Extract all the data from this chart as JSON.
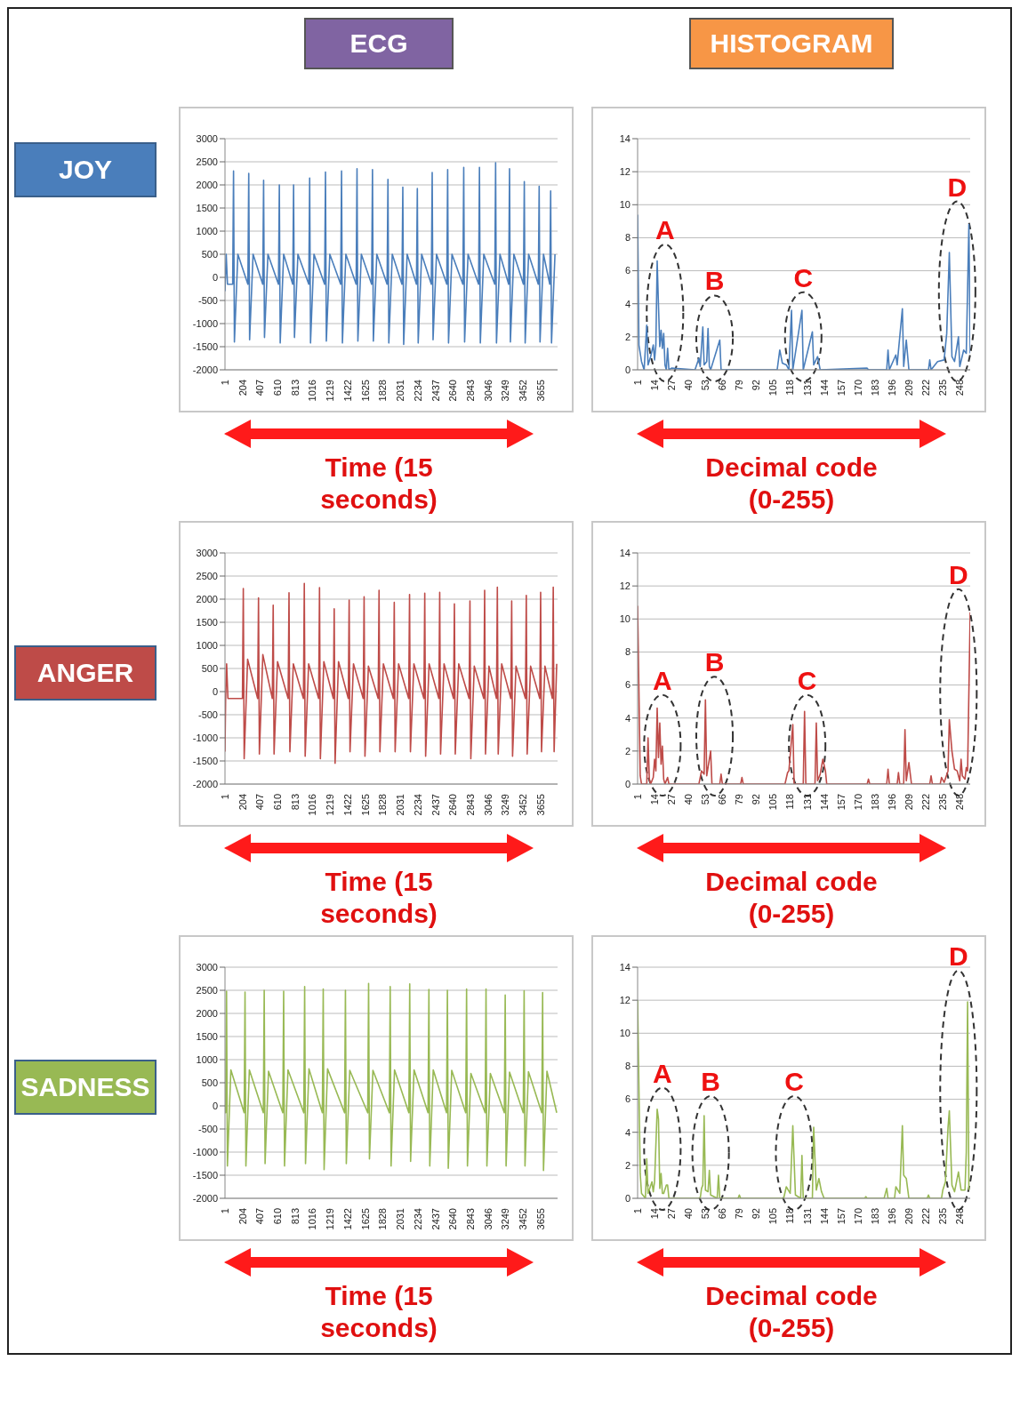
{
  "chart_data": [
    {
      "type": "line",
      "title": "ECG",
      "xlabel": "Time (15 seconds)",
      "annotations": [
        "JOY"
      ],
      "grid": "y",
      "xlim": [
        1,
        3850
      ],
      "xticks": [
        1,
        204,
        407,
        610,
        813,
        1016,
        1219,
        1422,
        1625,
        1828,
        2031,
        2234,
        2437,
        2640,
        2843,
        3046,
        3249,
        3452,
        3655
      ],
      "ylim": [
        -2000,
        3000
      ],
      "yticks": [
        -2000,
        -1500,
        -1000,
        -500,
        0,
        500,
        1000,
        1500,
        2000,
        2500,
        3000
      ],
      "series": [
        {
          "color": "#4a7ebb",
          "x": [
            1,
            15,
            30,
            90,
            100,
            110,
            150,
            266,
            276,
            286,
            326,
            438,
            448,
            458,
            498,
            620,
            630,
            640,
            680,
            785,
            795,
            805,
            845,
            971,
            981,
            991,
            1031,
            1154,
            1164,
            1174,
            1214,
            1340,
            1350,
            1360,
            1400,
            1519,
            1529,
            1539,
            1579,
            1698,
            1708,
            1718,
            1758,
            1877,
            1887,
            1897,
            1937,
            2049,
            2059,
            2069,
            2109,
            2217,
            2227,
            2237,
            2277,
            2389,
            2399,
            2409,
            2449,
            2568,
            2578,
            2588,
            2628,
            2754,
            2764,
            2774,
            2814,
            2936,
            2946,
            2956,
            2996,
            3123,
            3133,
            3143,
            3183,
            3284,
            3294,
            3304,
            3344,
            3455,
            3465,
            3475,
            3515,
            3627,
            3637,
            3647,
            3687,
            3760,
            3770,
            3780,
            3820
          ],
          "values": [
            -300,
            500,
            -150,
            -150,
            2300,
            -1400,
            500,
            -150,
            2250,
            -1350,
            500,
            -150,
            2100,
            -1300,
            500,
            -150,
            2000,
            -1420,
            500,
            -150,
            2000,
            -1300,
            500,
            -150,
            2150,
            -1420,
            500,
            -150,
            2280,
            -1380,
            500,
            -150,
            2300,
            -1420,
            500,
            -150,
            2350,
            -1380,
            500,
            -150,
            2330,
            -1380,
            500,
            -150,
            2120,
            -1420,
            500,
            -150,
            1950,
            -1450,
            500,
            -150,
            1920,
            -1420,
            500,
            -150,
            2270,
            -1350,
            500,
            -150,
            2330,
            -1420,
            500,
            -150,
            2380,
            -1400,
            500,
            -150,
            2380,
            -1420,
            500,
            -150,
            2480,
            -1420,
            500,
            -150,
            2350,
            -1400,
            500,
            -150,
            2070,
            -1420,
            500,
            -150,
            1970,
            -1400,
            500,
            -150,
            1870,
            -1420,
            500
          ]
        }
      ]
    },
    {
      "type": "line",
      "title": "HISTOGRAM",
      "xlabel": "Decimal code (0-255)",
      "grid": "y",
      "xlim": [
        1,
        256
      ],
      "xticks": [
        1,
        14,
        27,
        40,
        53,
        66,
        79,
        92,
        105,
        118,
        131,
        144,
        157,
        170,
        183,
        196,
        209,
        222,
        235,
        248
      ],
      "ylim": [
        0,
        14
      ],
      "yticks": [
        0,
        2,
        4,
        6,
        8,
        10,
        12,
        14
      ],
      "annotations": [
        "A",
        "B",
        "C",
        "D"
      ],
      "series": [
        {
          "color": "#4a7ebb",
          "x": [
            1,
            2,
            4,
            6,
            8,
            9,
            11,
            13,
            14,
            15,
            16,
            17,
            18,
            19,
            20,
            21,
            22,
            23,
            24,
            25,
            27,
            45,
            48,
            49,
            51,
            52,
            54,
            55,
            56,
            57,
            64,
            65,
            108,
            110,
            112,
            115,
            117,
            119,
            120,
            127,
            128,
            135,
            136,
            139,
            141,
            177,
            178,
            192,
            193,
            194,
            199,
            200,
            204,
            205,
            207,
            209,
            224,
            225,
            226,
            231,
            236,
            238,
            240,
            242,
            244,
            247,
            248,
            251,
            253,
            255,
            256
          ],
          "values": [
            9.4,
            1.5,
            0.5,
            0,
            2.7,
            0.3,
            0.8,
            1.5,
            0.6,
            1.5,
            6.6,
            3.9,
            1.4,
            2.4,
            1.3,
            2.2,
            0.3,
            0,
            1.3,
            0,
            0.1,
            0,
            0.7,
            0.2,
            2.6,
            0.3,
            0.5,
            2.5,
            0.2,
            0,
            1.8,
            0,
            0,
            1.2,
            0.4,
            0.3,
            0,
            3.6,
            0,
            3.6,
            0,
            2.3,
            0.3,
            0.8,
            0,
            0.1,
            0,
            0,
            1.2,
            0,
            0.9,
            0.3,
            3.7,
            0.2,
            1.8,
            0,
            0,
            0.6,
            0,
            0.5,
            0.6,
            2.2,
            7.1,
            0.8,
            0.5,
            2,
            0.2,
            1.2,
            1,
            8.8,
            1
          ]
        }
      ]
    },
    {
      "type": "line",
      "xlabel": "Time (15 seconds)",
      "annotations": [
        "ANGER"
      ],
      "grid": "y",
      "xlim": [
        1,
        3850
      ],
      "xticks": [
        1,
        204,
        407,
        610,
        813,
        1016,
        1219,
        1422,
        1625,
        1828,
        2031,
        2234,
        2437,
        2640,
        2843,
        3046,
        3249,
        3452,
        3655
      ],
      "ylim": [
        -2000,
        3000
      ],
      "yticks": [
        -2000,
        -1500,
        -1000,
        -500,
        0,
        500,
        1000,
        1500,
        2000,
        2500,
        3000
      ],
      "series": [
        {
          "color": "#be4b48",
          "x": [
            1,
            8,
            20,
            35,
            203,
            213,
            223,
            263,
            379,
            389,
            399,
            439,
            549,
            559,
            569,
            609,
            732,
            742,
            752,
            792,
            909,
            919,
            929,
            969,
            1085,
            1095,
            1105,
            1145,
            1255,
            1265,
            1275,
            1315,
            1428,
            1438,
            1448,
            1488,
            1601,
            1611,
            1621,
            1661,
            1774,
            1784,
            1794,
            1834,
            1950,
            1960,
            1970,
            2010,
            2127,
            2137,
            2147,
            2187,
            2303,
            2313,
            2323,
            2363,
            2476,
            2486,
            2496,
            2536,
            2646,
            2656,
            2666,
            2706,
            2826,
            2836,
            2846,
            2886,
            2996,
            3006,
            3016,
            3056,
            3143,
            3153,
            3163,
            3203,
            3309,
            3319,
            3329,
            3369,
            3478,
            3488,
            3498,
            3538,
            3644,
            3654,
            3664,
            3704,
            3790,
            3800,
            3810,
            3840
          ],
          "values": [
            -1300,
            -200,
            600,
            -150,
            -150,
            2230,
            -1450,
            700,
            -150,
            2030,
            -1350,
            800,
            -150,
            1870,
            -1350,
            650,
            -150,
            2140,
            -1300,
            600,
            -150,
            2340,
            -1400,
            600,
            -150,
            2250,
            -1450,
            650,
            -150,
            1790,
            -1550,
            650,
            -150,
            1980,
            -1300,
            600,
            -150,
            2050,
            -1400,
            550,
            -150,
            2190,
            -1300,
            600,
            -150,
            1930,
            -1300,
            600,
            -150,
            2100,
            -1300,
            600,
            -150,
            2130,
            -1400,
            600,
            -150,
            2150,
            -1350,
            600,
            -150,
            1900,
            -1350,
            600,
            -150,
            1960,
            -1450,
            550,
            -150,
            2190,
            -1350,
            550,
            -150,
            2260,
            -1350,
            600,
            -150,
            1960,
            -1400,
            550,
            -150,
            2080,
            -1350,
            550,
            -150,
            2150,
            -1300,
            550,
            -150,
            2260,
            -1300,
            600
          ]
        }
      ]
    },
    {
      "type": "line",
      "xlabel": "Decimal code (0-255)",
      "grid": "y",
      "xlim": [
        1,
        256
      ],
      "xticks": [
        1,
        14,
        27,
        40,
        53,
        66,
        79,
        92,
        105,
        118,
        131,
        144,
        157,
        170,
        183,
        196,
        209,
        222,
        235,
        248
      ],
      "ylim": [
        0,
        14
      ],
      "yticks": [
        0,
        2,
        4,
        6,
        8,
        10,
        12,
        14
      ],
      "annotations": [
        "A",
        "B",
        "C",
        "D"
      ],
      "series": [
        {
          "color": "#be4b48",
          "x": [
            1,
            3,
            4,
            8,
            9,
            10,
            11,
            13,
            14,
            15,
            16,
            17,
            18,
            19,
            20,
            21,
            22,
            24,
            25,
            48,
            50,
            52,
            53,
            54,
            57,
            58,
            64,
            65,
            66,
            80,
            81,
            82,
            114,
            116,
            117,
            120,
            121,
            128,
            129,
            130,
            137,
            138,
            139,
            141,
            143,
            145,
            146,
            177,
            178,
            179,
            192,
            193,
            194,
            200,
            201,
            202,
            205,
            206,
            207,
            209,
            211,
            225,
            226,
            227,
            233,
            234,
            236,
            239,
            240,
            242,
            244,
            246,
            248,
            249,
            250,
            252,
            253,
            254,
            256
          ],
          "values": [
            10.8,
            0.5,
            0,
            0,
            2.8,
            0.3,
            0,
            0.4,
            1.5,
            0.8,
            4.6,
            1.6,
            3.7,
            1.2,
            2.3,
            0.3,
            0,
            0.4,
            0,
            0,
            0.8,
            0.6,
            5.1,
            0.5,
            2,
            0,
            0,
            0.6,
            0,
            0,
            0.4,
            0,
            0,
            0.7,
            0.8,
            3.6,
            0,
            0,
            4.4,
            0,
            0,
            3.7,
            0.2,
            0.6,
            1.5,
            0.8,
            0,
            0,
            0.3,
            0,
            0,
            0.9,
            0,
            0,
            0.7,
            0,
            0,
            3.3,
            0.2,
            1.3,
            0,
            0,
            0.5,
            0,
            0,
            0.4,
            0.1,
            0.8,
            3.9,
            2,
            0.9,
            0.8,
            0.2,
            1.5,
            0.5,
            0.3,
            1,
            0.8,
            10.4
          ]
        }
      ]
    },
    {
      "type": "line",
      "xlabel": "Time (15 seconds)",
      "annotations": [
        "SADNESS"
      ],
      "grid": "y",
      "xlim": [
        1,
        3850
      ],
      "xticks": [
        1,
        204,
        407,
        610,
        813,
        1016,
        1219,
        1422,
        1625,
        1828,
        2031,
        2234,
        2437,
        2640,
        2843,
        3046,
        3249,
        3452,
        3655
      ],
      "ylim": [
        -2000,
        3000
      ],
      "yticks": [
        -2000,
        -1500,
        -1000,
        -500,
        0,
        500,
        1000,
        1500,
        2000,
        2500,
        3000
      ],
      "series": [
        {
          "color": "#98b954",
          "x": [
            1,
            9,
            19,
            29,
            69,
            223,
            233,
            243,
            283,
            445,
            455,
            465,
            505,
            670,
            680,
            690,
            730,
            913,
            923,
            933,
            973,
            1128,
            1138,
            1148,
            1188,
            1385,
            1395,
            1405,
            1445,
            1653,
            1663,
            1673,
            1713,
            1903,
            1913,
            1923,
            1963,
            2129,
            2139,
            2149,
            2189,
            2351,
            2361,
            2371,
            2411,
            2565,
            2575,
            2585,
            2625,
            2787,
            2797,
            2807,
            2847,
            3012,
            3022,
            3032,
            3072,
            3234,
            3244,
            3254,
            3294,
            3453,
            3463,
            3473,
            3513,
            3667,
            3677,
            3687,
            3727,
            3840
          ],
          "values": [
            -150,
            -150,
            2480,
            -1300,
            780,
            -150,
            2460,
            -1300,
            780,
            -150,
            2500,
            -1250,
            750,
            -150,
            2480,
            -1300,
            780,
            -150,
            2580,
            -1250,
            800,
            -150,
            2530,
            -1380,
            800,
            -150,
            2500,
            -1250,
            770,
            -150,
            2650,
            -1150,
            770,
            -150,
            2580,
            -1300,
            780,
            -150,
            2640,
            -1200,
            780,
            -150,
            2520,
            -1300,
            780,
            -150,
            2500,
            -1350,
            770,
            -150,
            2530,
            -1300,
            700,
            -150,
            2530,
            -1300,
            700,
            -150,
            2400,
            -1300,
            730,
            -150,
            2490,
            -1300,
            740,
            -150,
            2450,
            -1400,
            750,
            -150
          ]
        }
      ]
    },
    {
      "type": "line",
      "xlabel": "Decimal code (0-255)",
      "grid": "y",
      "xlim": [
        1,
        256
      ],
      "xticks": [
        1,
        14,
        27,
        40,
        53,
        66,
        79,
        92,
        105,
        118,
        131,
        144,
        157,
        170,
        183,
        196,
        209,
        222,
        235,
        248
      ],
      "ylim": [
        0,
        14
      ],
      "yticks": [
        0,
        2,
        4,
        6,
        8,
        10,
        12,
        14
      ],
      "annotations": [
        "A",
        "B",
        "C",
        "D"
      ],
      "series": [
        {
          "color": "#98b954",
          "x": [
            1,
            3,
            4,
            7,
            8,
            9,
            12,
            13,
            14,
            16,
            17,
            18,
            19,
            20,
            21,
            23,
            24,
            25,
            49,
            50,
            51,
            52,
            53,
            55,
            56,
            57,
            62,
            63,
            64,
            78,
            79,
            80,
            113,
            115,
            118,
            120,
            122,
            126,
            127,
            128,
            135,
            136,
            138,
            140,
            142,
            144,
            175,
            176,
            177,
            190,
            192,
            193,
            198,
            199,
            202,
            204,
            205,
            207,
            209,
            223,
            224,
            225,
            234,
            235,
            237,
            239,
            240,
            242,
            244,
            247,
            249,
            252,
            253,
            254,
            255
          ],
          "values": [
            12,
            1.5,
            0.3,
            0,
            2.4,
            0.3,
            1,
            0.4,
            1,
            5.4,
            4.8,
            0.6,
            1.5,
            0.3,
            0.3,
            0.8,
            0.8,
            0,
            0,
            0.6,
            0.8,
            5,
            0.5,
            0.4,
            1.7,
            0.2,
            0,
            1.4,
            0,
            0,
            0.2,
            0,
            0,
            0.7,
            0.3,
            4.4,
            0.2,
            0,
            2.6,
            0,
            0,
            4.3,
            0.5,
            1.2,
            0.4,
            0,
            0,
            0.1,
            0,
            0,
            0.6,
            0,
            0,
            0.7,
            0.3,
            4.4,
            1.4,
            1.2,
            0,
            0,
            0.2,
            0,
            0,
            0.5,
            1,
            4.3,
            5.3,
            0.8,
            0.4,
            1.6,
            0.5,
            0.5,
            2.8,
            11.9,
            0.5
          ]
        }
      ]
    }
  ]
}
